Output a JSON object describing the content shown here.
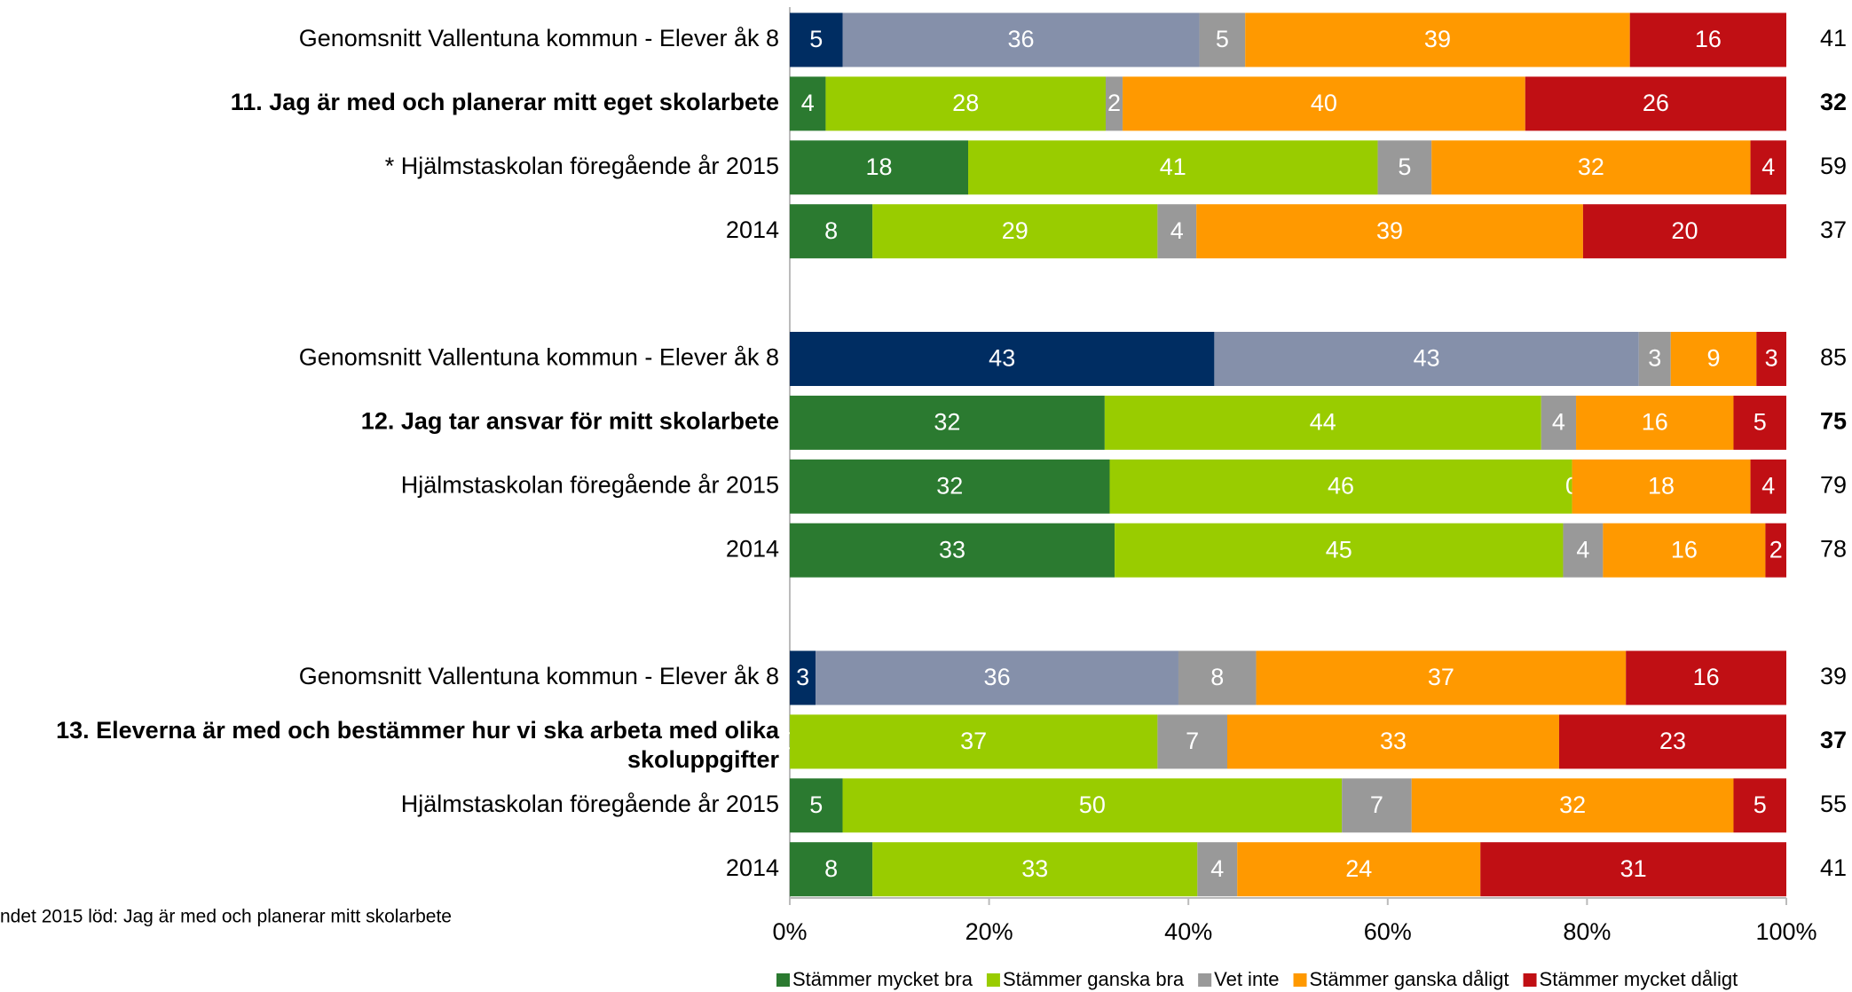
{
  "chart_data": {
    "type": "stacked_barh",
    "categories": [
      "Genomsnitt Vallentuna kommun - Elever åk 8",
      "11. Jag är med och planerar mitt eget skolarbete",
      "* Hjälmstaskolan föregående år 2015",
      "2014",
      "Genomsnitt Vallentuna kommun - Elever åk 8",
      "12. Jag tar ansvar för mitt skolarbete",
      "Hjälmstaskolan föregående år 2015",
      "2014",
      "Genomsnitt Vallentuna kommun - Elever åk 8",
      "13. Eleverna är med och bestämmer hur vi ska arbeta med olika\nskoluppgifter",
      "Hjälmstaskolan föregående år 2015",
      "2014"
    ],
    "bold_rows": [
      false,
      true,
      false,
      false,
      false,
      true,
      false,
      false,
      false,
      true,
      false,
      false
    ],
    "series": [
      {
        "name": "Stämmer mycket bra",
        "color": "#2b7a30",
        "colors": [
          "#002d62",
          "#2b7a30",
          "#2b7a30",
          "#2b7a30",
          "#002d62",
          "#2b7a30",
          "#2b7a30",
          "#2b7a30",
          "#002d62",
          "#2b7a30",
          "#2b7a30",
          "#2b7a30"
        ],
        "values": [
          5.3,
          3.6,
          17.9,
          8.3,
          42.6,
          31.6,
          32.1,
          32.6,
          2.6,
          0,
          5.3,
          8.3
        ],
        "value_labels": [
          "5",
          "4",
          "18",
          "8",
          "43",
          "32",
          "32",
          "33",
          "3",
          "0",
          "5",
          "8"
        ]
      },
      {
        "name": "Stämmer ganska bra",
        "color": "#99cc00",
        "colors": [
          "#8590aa",
          "#99cc00",
          "#99cc00",
          "#99cc00",
          "#8590aa",
          "#99cc00",
          "#99cc00",
          "#99cc00",
          "#8590aa",
          "#99cc00",
          "#99cc00",
          "#99cc00"
        ],
        "values": [
          35.8,
          28.1,
          41.1,
          28.6,
          42.6,
          43.8,
          46.4,
          45.0,
          36.4,
          36.9,
          50.1,
          32.6
        ],
        "value_labels": [
          "36",
          "28",
          "41",
          "29",
          "43",
          "44",
          "46",
          "45",
          "36",
          "37",
          "50",
          "33"
        ]
      },
      {
        "name": "Vet inte",
        "color": "#999999",
        "values": [
          4.6,
          1.7,
          5.4,
          3.9,
          3.2,
          3.5,
          0,
          4.0,
          7.8,
          7.0,
          7.0,
          4.0
        ],
        "value_labels": [
          "5",
          "2",
          "5",
          "4",
          "3",
          "4",
          "0",
          "4",
          "8",
          "7",
          "7",
          "4"
        ]
      },
      {
        "name": "Stämmer ganska dåligt",
        "color": "#ff9900",
        "values": [
          38.6,
          40.4,
          32.0,
          38.8,
          8.6,
          15.8,
          17.9,
          16.3,
          37.1,
          33.3,
          32.3,
          24.4
        ],
        "value_labels": [
          "39",
          "40",
          "32",
          "39",
          "9",
          "16",
          "18",
          "16",
          "37",
          "33",
          "32",
          "24"
        ]
      },
      {
        "name": "Stämmer mycket dåligt",
        "color": "#c00f14",
        "values": [
          15.7,
          26.2,
          3.6,
          20.4,
          3.0,
          5.3,
          3.6,
          2.1,
          16.1,
          22.8,
          5.3,
          30.7
        ],
        "value_labels": [
          "16",
          "26",
          "4",
          "20",
          "3",
          "5",
          "4",
          "2",
          "16",
          "23",
          "5",
          "31"
        ]
      }
    ],
    "index_values": [
      41,
      32,
      59,
      37,
      85,
      75,
      79,
      78,
      39,
      37,
      55,
      41
    ],
    "xlim": [
      0,
      100
    ],
    "xticks": [
      {
        "value": 0,
        "label": "0%"
      },
      {
        "value": 20,
        "label": "20%"
      },
      {
        "value": 40,
        "label": "40%"
      },
      {
        "value": 60,
        "label": "60%"
      },
      {
        "value": 80,
        "label": "80%"
      },
      {
        "value": 100,
        "label": "100%"
      }
    ],
    "footnote": "ndet 2015 löd: Jag är med och planerar mitt skolarbete",
    "legend": "bottom-right"
  }
}
